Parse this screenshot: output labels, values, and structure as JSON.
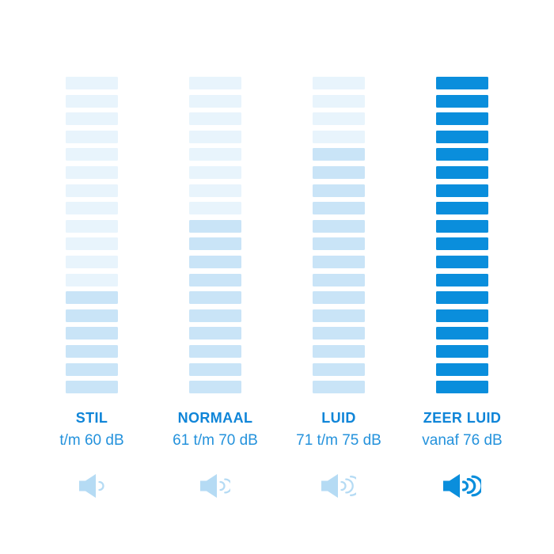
{
  "page": {
    "background_color": "#ffffff"
  },
  "chart_data": {
    "type": "bar",
    "title": "",
    "categories": [
      "STIL",
      "NORMAAL",
      "LUID",
      "ZEER LUID"
    ],
    "category_sublabels": [
      "t/m 60 dB",
      "61 t/m 70 dB",
      "71 t/m 75 dB",
      "vanaf 76 dB"
    ],
    "segments_per_column": 18,
    "segments_filled": [
      6,
      10,
      14,
      18
    ],
    "volume_icon_waves": [
      1,
      2,
      3,
      3
    ],
    "legend_position": "none",
    "grid": false,
    "colors": {
      "segment_unfilled": "#e8f4fc",
      "segment_filled_light": "#c9e4f7",
      "segment_filled_strong": "#0a8edc",
      "icon_light_blue": "#b5dbf4",
      "icon_strong_blue": "#0a8edc",
      "title_text": "#0f85d8",
      "range_text": "#2492dc"
    }
  },
  "columns": [
    {
      "id": "stil",
      "title": "STIL",
      "range": "t/m 60 dB",
      "segments_total": 18,
      "segments_filled": 6,
      "unfilled_color": "#e8f4fc",
      "filled_color": "#c9e4f7",
      "icon": "speaker-volume-low-icon",
      "icon_color": "#b5dbf4",
      "wave_count": 1,
      "emphasis": false
    },
    {
      "id": "normaal",
      "title": "NORMAAL",
      "range": "61 t/m 70 dB",
      "segments_total": 18,
      "segments_filled": 10,
      "unfilled_color": "#e8f4fc",
      "filled_color": "#c9e4f7",
      "icon": "speaker-volume-medium-icon",
      "icon_color": "#b5dbf4",
      "wave_count": 2,
      "emphasis": false
    },
    {
      "id": "luid",
      "title": "LUID",
      "range": "71 t/m 75 dB",
      "segments_total": 18,
      "segments_filled": 14,
      "unfilled_color": "#e8f4fc",
      "filled_color": "#c9e4f7",
      "icon": "speaker-volume-high-icon",
      "icon_color": "#b5dbf4",
      "wave_count": 3,
      "emphasis": false
    },
    {
      "id": "zeer-luid",
      "title": "ZEER LUID",
      "range": "vanaf 76 dB",
      "segments_total": 18,
      "segments_filled": 18,
      "unfilled_color": "#0a8edc",
      "filled_color": "#0a8edc",
      "icon": "speaker-volume-max-icon",
      "icon_color": "#0a8edc",
      "wave_count": 3,
      "emphasis": true
    }
  ]
}
